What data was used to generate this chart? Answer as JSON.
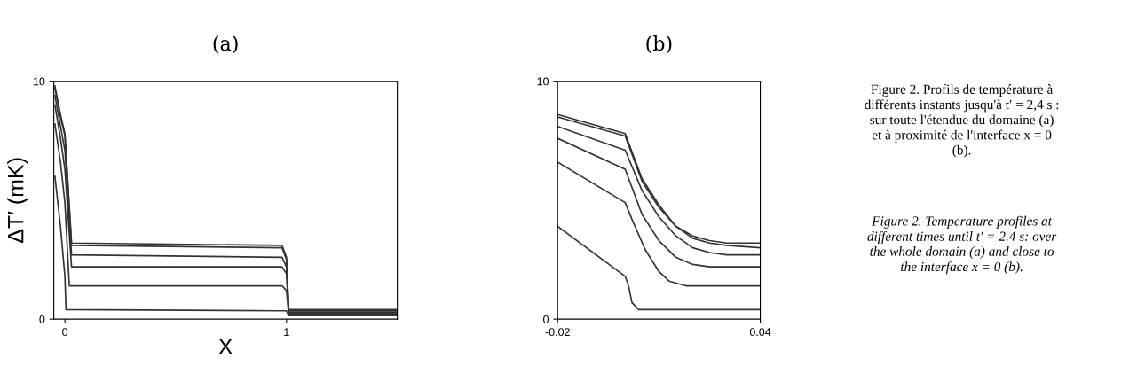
{
  "chart_data": [
    {
      "type": "line",
      "title": "(a)",
      "xlabel": "X",
      "ylabel": "ΔT′ (mK)",
      "xlim": [
        -0.05,
        1.5
      ],
      "xticks": [
        0,
        1
      ],
      "ylim": [
        0,
        10
      ],
      "yticks": [
        0,
        10
      ],
      "grid": false,
      "legend": false,
      "series": [
        {
          "color": "#333333",
          "x": [
            -0.045,
            -0.02,
            0,
            0.03,
            0.98,
            1.0,
            1.01,
            1.5
          ],
          "values": [
            9.8,
            8.6,
            7.8,
            3.2,
            3.1,
            2.6,
            0.4,
            0.4
          ]
        },
        {
          "color": "#333333",
          "x": [
            -0.045,
            -0.02,
            0,
            0.03,
            0.98,
            1.0,
            1.01,
            1.5
          ],
          "values": [
            9.7,
            8.5,
            7.7,
            3.1,
            3.0,
            2.5,
            0.35,
            0.35
          ]
        },
        {
          "color": "#333333",
          "x": [
            -0.045,
            -0.02,
            0,
            0.03,
            0.98,
            1.0,
            1.01,
            1.5
          ],
          "values": [
            9.4,
            8.1,
            7.1,
            2.7,
            2.6,
            2.2,
            0.3,
            0.3
          ]
        },
        {
          "color": "#333333",
          "x": [
            -0.045,
            -0.02,
            0,
            0.03,
            0.98,
            1.0,
            1.01,
            1.5
          ],
          "values": [
            9.0,
            7.6,
            6.3,
            2.2,
            2.2,
            1.9,
            0.25,
            0.25
          ]
        },
        {
          "color": "#333333",
          "x": [
            -0.045,
            -0.02,
            0,
            0.02,
            0.98,
            1.0,
            1.01,
            1.5
          ],
          "values": [
            8.2,
            6.6,
            4.9,
            1.4,
            1.4,
            1.2,
            0.2,
            0.2
          ]
        },
        {
          "color": "#333333",
          "x": [
            -0.045,
            -0.02,
            0,
            0.005,
            0.98,
            1.0,
            1.01,
            1.5
          ],
          "values": [
            6.0,
            3.9,
            1.8,
            0.4,
            0.35,
            0.35,
            0.15,
            0.15
          ]
        }
      ]
    },
    {
      "type": "line",
      "title": "(b)",
      "xlim": [
        -0.02,
        0.04
      ],
      "xticks": [
        -0.02,
        0.04
      ],
      "ylim": [
        0,
        10
      ],
      "yticks": [
        0,
        10
      ],
      "grid": false,
      "legend": false,
      "annotations": [
        "Figure 2. Profils de température à\ndifférents instants jusqu'à t′ = 2,4 s :\nsur toute l'étendue du domaine (a)\net à proximité de l'interface x = 0\n(b).",
        "Figure 2. Temperature profiles at\ndifferent times until t′ = 2.4 s: over\nthe whole domain (a) and close to\nthe interface x = 0 (b)."
      ],
      "series": [
        {
          "color": "#333333",
          "x": [
            -0.02,
            0,
            0.005,
            0.01,
            0.015,
            0.02,
            0.025,
            0.03,
            0.04
          ],
          "values": [
            8.6,
            7.8,
            5.9,
            4.8,
            3.9,
            3.5,
            3.3,
            3.2,
            3.2
          ]
        },
        {
          "color": "#333333",
          "x": [
            -0.02,
            0,
            0.005,
            0.01,
            0.015,
            0.02,
            0.025,
            0.03,
            0.04
          ],
          "values": [
            8.5,
            7.7,
            5.8,
            4.7,
            3.9,
            3.4,
            3.2,
            3.1,
            3.0
          ]
        },
        {
          "color": "#333333",
          "x": [
            -0.02,
            0,
            0.005,
            0.01,
            0.015,
            0.02,
            0.025,
            0.03,
            0.04
          ],
          "values": [
            8.1,
            7.1,
            5.4,
            4.3,
            3.5,
            3.0,
            2.8,
            2.7,
            2.7
          ]
        },
        {
          "color": "#333333",
          "x": [
            -0.02,
            0,
            0.005,
            0.01,
            0.015,
            0.02,
            0.025,
            0.04
          ],
          "values": [
            7.6,
            6.3,
            4.4,
            3.3,
            2.6,
            2.3,
            2.2,
            2.2
          ]
        },
        {
          "color": "#333333",
          "x": [
            -0.02,
            0,
            0.002,
            0.006,
            0.01,
            0.013,
            0.018,
            0.04
          ],
          "values": [
            6.6,
            4.9,
            4.2,
            2.9,
            2.0,
            1.6,
            1.4,
            1.4
          ]
        },
        {
          "color": "#333333",
          "x": [
            -0.02,
            0,
            0.001,
            0.002,
            0.004,
            0.01,
            0.04
          ],
          "values": [
            3.9,
            1.8,
            1.4,
            0.7,
            0.4,
            0.4,
            0.4
          ]
        }
      ]
    }
  ]
}
